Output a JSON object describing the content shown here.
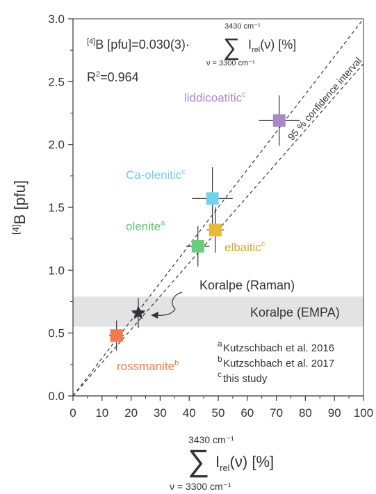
{
  "chart_data": {
    "type": "scatter",
    "title": "",
    "xlabel": {
      "upper_limit": "3430 cm⁻¹",
      "main": "I",
      "sub": "rel",
      "rest": "(ν) [%]",
      "lower_limit": "ν = 3300 cm⁻¹"
    },
    "ylabel": {
      "superscript": "[4]",
      "main": "B [pfu]"
    },
    "xlim": [
      0,
      100
    ],
    "ylim": [
      0,
      3.0
    ],
    "xticks": [
      "0",
      "10",
      "20",
      "30",
      "40",
      "50",
      "60",
      "70",
      "80",
      "90",
      "100"
    ],
    "yticks": [
      "0.0",
      "0.5",
      "1.0",
      "1.5",
      "2.0",
      "2.5",
      "3.0"
    ],
    "formula": {
      "lhs_superscript": "[4]",
      "lhs": "B [pfu]=0.030(3)·",
      "upper_limit": "3430 cm⁻¹",
      "term": "I",
      "term_sub": "rel",
      "rest": "(ν) [%]",
      "lower_limit": "ν = 3300 cm⁻¹"
    },
    "r2": {
      "prefix": "R",
      "superscript": "2",
      "suffix": "=0.964"
    },
    "points": [
      {
        "name": "rossmanite",
        "ref": "b",
        "x": 15,
        "y": 0.48,
        "xerr": 2.5,
        "yerr": 0.12,
        "color": "#f4784a",
        "label_color": "#f4784a"
      },
      {
        "name": "olenite",
        "ref": "a",
        "x": 43,
        "y": 1.19,
        "xerr": 4,
        "yerr": 0.16,
        "color": "#6dcb7d",
        "label_color": "#5fbf74"
      },
      {
        "name": "elbaitic",
        "ref": "c",
        "x": 49,
        "y": 1.32,
        "xerr": 3,
        "yerr": 0.18,
        "color": "#e8b93a",
        "label_color": "#d9a82a"
      },
      {
        "name": "Ca-olenitic",
        "ref": "c",
        "x": 48,
        "y": 1.57,
        "xerr": 7,
        "yerr": 0.25,
        "color": "#72d3ea",
        "label_color": "#6ccfe6"
      },
      {
        "name": "liddicoatitic",
        "ref": "c",
        "x": 71,
        "y": 2.19,
        "xerr": 7,
        "yerr": 0.2,
        "color": "#a889c7",
        "label_color": "#a58cc8"
      }
    ],
    "star": {
      "label": "Koralpe (Raman)",
      "x": 22.5,
      "y": 0.66,
      "xerr": 2,
      "yerr": 0.12,
      "color": "#2e333a"
    },
    "band": {
      "label": "Koralpe (EMPA)",
      "y_low": 0.55,
      "y_high": 0.79,
      "color": "#e3e3e3"
    },
    "fit_line": {
      "slope": 0.03
    },
    "confidence_line": {
      "label": "95 % confidence interval",
      "slope": 0.02643
    },
    "references": [
      {
        "key": "a",
        "text": "Kutzschbach et al. 2016"
      },
      {
        "key": "b",
        "text": "Kutzschbach et al. 2017"
      },
      {
        "key": "c",
        "text": "this study"
      }
    ]
  }
}
